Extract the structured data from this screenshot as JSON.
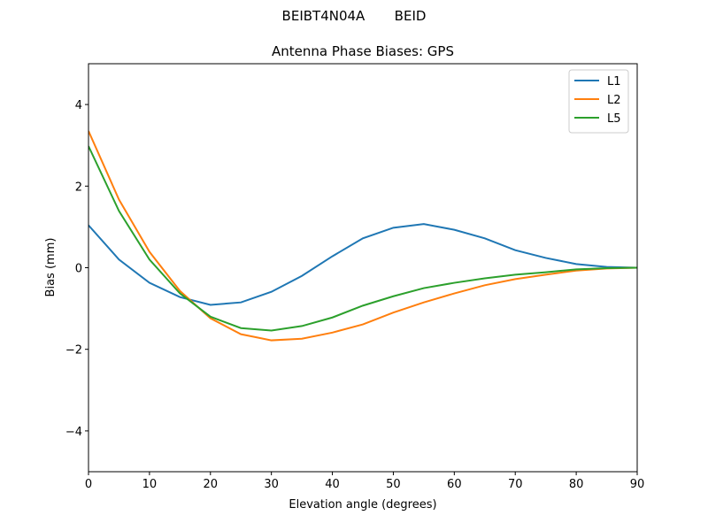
{
  "chart_data": {
    "type": "line",
    "suptitle": "BEIBT4N04A       BEID",
    "title": "Antenna Phase Biases: GPS",
    "x_label": "Elevation angle (degrees)",
    "y_label": "Bias (mm)",
    "x": [
      0,
      5,
      10,
      15,
      20,
      25,
      30,
      35,
      40,
      45,
      50,
      55,
      60,
      65,
      70,
      75,
      80,
      85,
      90
    ],
    "series": [
      {
        "name": "L1",
        "color": "#1f77b4",
        "values": [
          1.04,
          0.2,
          -0.37,
          -0.72,
          -0.91,
          -0.85,
          -0.59,
          -0.2,
          0.28,
          0.72,
          0.98,
          1.07,
          0.93,
          0.72,
          0.43,
          0.24,
          0.09,
          0.02,
          0
        ]
      },
      {
        "name": "L2",
        "color": "#ff7f0e",
        "values": [
          3.35,
          1.67,
          0.39,
          -0.57,
          -1.24,
          -1.63,
          -1.78,
          -1.74,
          -1.59,
          -1.39,
          -1.1,
          -0.85,
          -0.63,
          -0.43,
          -0.28,
          -0.17,
          -0.07,
          -0.02,
          0
        ]
      },
      {
        "name": "L5",
        "color": "#2ca02c",
        "values": [
          2.98,
          1.39,
          0.2,
          -0.63,
          -1.2,
          -1.48,
          -1.54,
          -1.43,
          -1.22,
          -0.93,
          -0.7,
          -0.5,
          -0.37,
          -0.26,
          -0.17,
          -0.11,
          -0.04,
          -0.01,
          0
        ]
      }
    ],
    "xlim": [
      0,
      90
    ],
    "xticks": [
      0,
      10,
      20,
      30,
      40,
      50,
      60,
      70,
      80,
      90
    ],
    "ylim": [
      -5,
      5
    ],
    "yticks": [
      {
        "value": -4,
        "label": "−4"
      },
      {
        "value": -2,
        "label": "−2"
      },
      0,
      2,
      4
    ],
    "legend": "upper right"
  }
}
